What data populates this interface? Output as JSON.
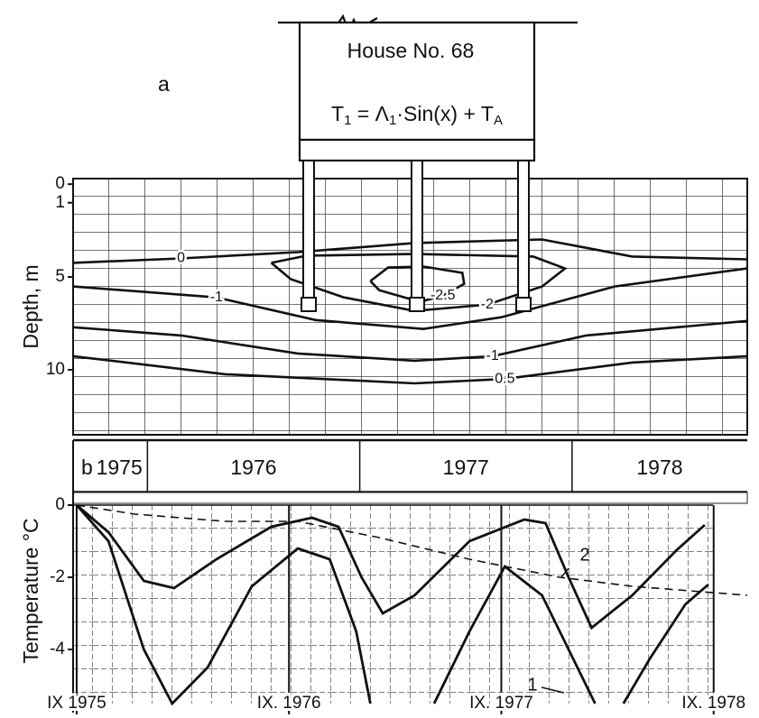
{
  "chart_data": [
    {
      "type": "contour",
      "panel_label": "a",
      "house_label": "House No. 68",
      "formula": [
        {
          "text": "T"
        },
        {
          "sub": "1"
        },
        {
          "text": " = Λ"
        },
        {
          "sub": "1"
        },
        {
          "text": "·Sin(x) + T"
        },
        {
          "sub": "A"
        }
      ],
      "ylabel": "Depth, m",
      "xlim": [
        -0.2,
        37.9
      ],
      "ylim": [
        -0.3,
        13.5
      ],
      "yticks": [
        0,
        1,
        5,
        10
      ],
      "invert_y": true,
      "color": "#111",
      "series": [
        {
          "name": "0",
          "x": [
            -0.2,
            5.9,
            12.5,
            19.1,
            26.3,
            31.4,
            37.9
          ],
          "values": [
            4.24,
            4.0,
            3.66,
            3.17,
            2.98,
            3.9,
            4.05
          ]
        },
        {
          "name": "-1",
          "x": [
            -0.2,
            7.9,
            13.5,
            19.6,
            24.0,
            30.4,
            37.9
          ],
          "values": [
            5.51,
            6.1,
            7.32,
            7.8,
            7.17,
            5.51,
            4.54
          ]
        },
        {
          "name": "-2",
          "x": [
            11.0,
            13.0,
            19.1,
            25.8,
            27.6,
            26.3,
            23.2,
            19.1,
            15.1,
            12.1,
            11.0
          ],
          "values": [
            4.24,
            3.85,
            3.76,
            3.9,
            4.54,
            5.51,
            6.49,
            6.83,
            6.1,
            5.12,
            4.24
          ]
        },
        {
          "name": "-2.5",
          "x": [
            16.6,
            17.6,
            19.6,
            21.8,
            21.9,
            20.7,
            19.4,
            17.1,
            16.6
          ],
          "values": [
            5.22,
            4.49,
            4.44,
            4.78,
            5.37,
            6.0,
            6.34,
            5.71,
            5.22
          ]
        },
        {
          "name": "-1",
          "x": [
            -0.2,
            5.9,
            12.5,
            19.1,
            23.5,
            28.8,
            37.9
          ],
          "values": [
            7.71,
            8.15,
            9.12,
            9.51,
            9.27,
            8.15,
            7.37
          ]
        },
        {
          "name": "0.5",
          "x": [
            -0.2,
            8.4,
            19.1,
            24.2,
            31.4,
            37.9
          ],
          "values": [
            9.27,
            10.24,
            10.73,
            10.49,
            9.61,
            9.27
          ]
        }
      ]
    },
    {
      "type": "line",
      "panel_label": "b",
      "ylabel": "Temperature °C",
      "years": [
        "1975",
        "1976",
        "1977",
        "1978"
      ],
      "year_bounds": [
        4,
        16,
        28
      ],
      "xlim": [
        -0.2,
        37.9
      ],
      "ylim": [
        -5.5,
        0.3
      ],
      "yticks": [
        0,
        -2,
        -4
      ],
      "xticks": [
        {
          "value": 0,
          "label": "IX 1975"
        },
        {
          "value": 12,
          "label": "IX. 1976"
        },
        {
          "value": 24,
          "label": "IX. 1977"
        },
        {
          "value": 36,
          "label": "IX. 1978"
        }
      ],
      "series": [
        {
          "name": "1",
          "color": "#111",
          "x": [
            0,
            1.8,
            3.8,
            5.4,
            7.4,
            9.9,
            12.5,
            14.3,
            15.8,
            16.6,
            null,
            20.2,
            22.2,
            24.2,
            26.3,
            28.3,
            29.3,
            null,
            30.9,
            32.4,
            34.4,
            35.7
          ],
          "values": [
            0,
            -1.0,
            -4.0,
            -5.5,
            -4.5,
            -2.25,
            -1.2,
            -1.5,
            -3.5,
            -5.5,
            null,
            -5.5,
            -3.5,
            -1.7,
            -2.5,
            -4.5,
            -5.5,
            null,
            -5.5,
            -4.25,
            -2.75,
            -2.2
          ]
        },
        {
          "name": "2",
          "color": "#111",
          "x": [
            0,
            1.8,
            3.8,
            5.5,
            7.9,
            11,
            13.3,
            14.8,
            16.1,
            17.3,
            19.1,
            22.2,
            25.3,
            26.5,
            27.8,
            29.1,
            31.4,
            33.9,
            35.5
          ],
          "values": [
            0,
            -0.75,
            -2.1,
            -2.3,
            -1.5,
            -0.6,
            -0.35,
            -0.6,
            -2.0,
            -3.0,
            -2.5,
            -1.0,
            -0.4,
            -0.5,
            -2.0,
            -3.4,
            -2.5,
            -1.25,
            -0.55
          ]
        },
        {
          "color": "#111",
          "dash": true,
          "x": [
            0,
            3.3,
            8.4,
            12.5,
            17.1,
            22.2,
            27.3,
            31.4,
            37.9
          ],
          "values": [
            0,
            -0.25,
            -0.45,
            -0.45,
            -0.9,
            -1.5,
            -2.0,
            -2.25,
            -2.5
          ]
        }
      ]
    }
  ]
}
